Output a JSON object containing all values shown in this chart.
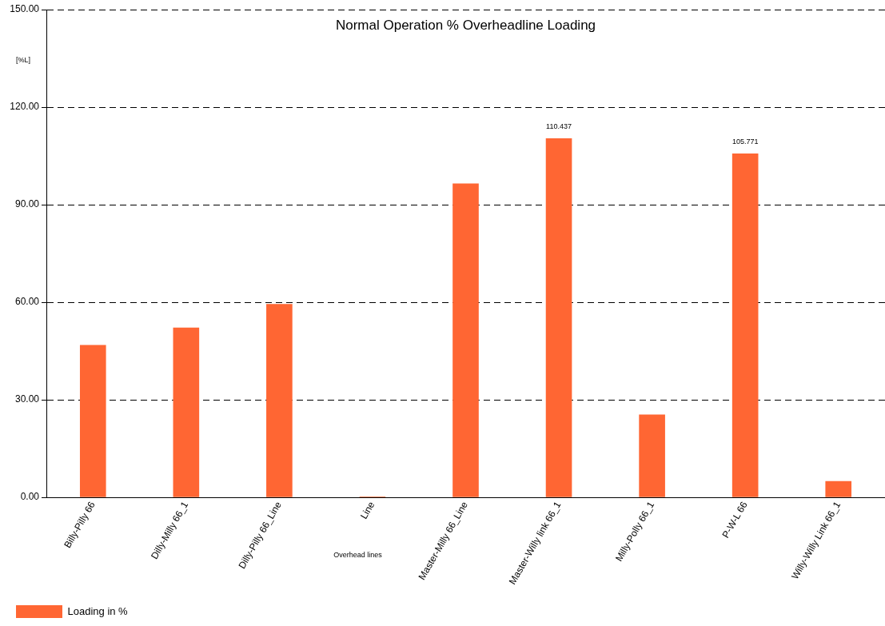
{
  "chart_data": {
    "type": "bar",
    "title": "Normal Operation % Overheadline Loading",
    "xlabel": "Overhead lines",
    "ylabel": "[%L]",
    "categories": [
      "Billy-Pilly 66",
      "Dilly-Milly 66_1",
      "Dilly-Pilly 66_Line",
      "Line",
      "Master-Milly 66_Line",
      "Master-Willy link 66_1",
      "Milly-Polly 66_1",
      "P-W-L 66",
      "Willy-Willy Link 66_1"
    ],
    "series": [
      {
        "name": "Loading in %",
        "color": "#ff6633",
        "values": [
          46.9,
          52.2,
          59.5,
          0.3,
          96.5,
          110.437,
          25.5,
          105.771,
          5.0
        ],
        "value_labels": [
          null,
          null,
          null,
          null,
          null,
          "110.437",
          null,
          "105.771",
          null
        ]
      }
    ],
    "ylim": [
      0,
      150
    ],
    "yticks": [
      {
        "value": 0,
        "label": "0.00"
      },
      {
        "value": 30,
        "label": "30.00"
      },
      {
        "value": 60,
        "label": "60.00"
      },
      {
        "value": 90,
        "label": "90.00"
      },
      {
        "value": 120,
        "label": "120.00"
      },
      {
        "value": 150,
        "label": "150.00"
      }
    ],
    "grid": "y",
    "legend": "bottom left"
  }
}
